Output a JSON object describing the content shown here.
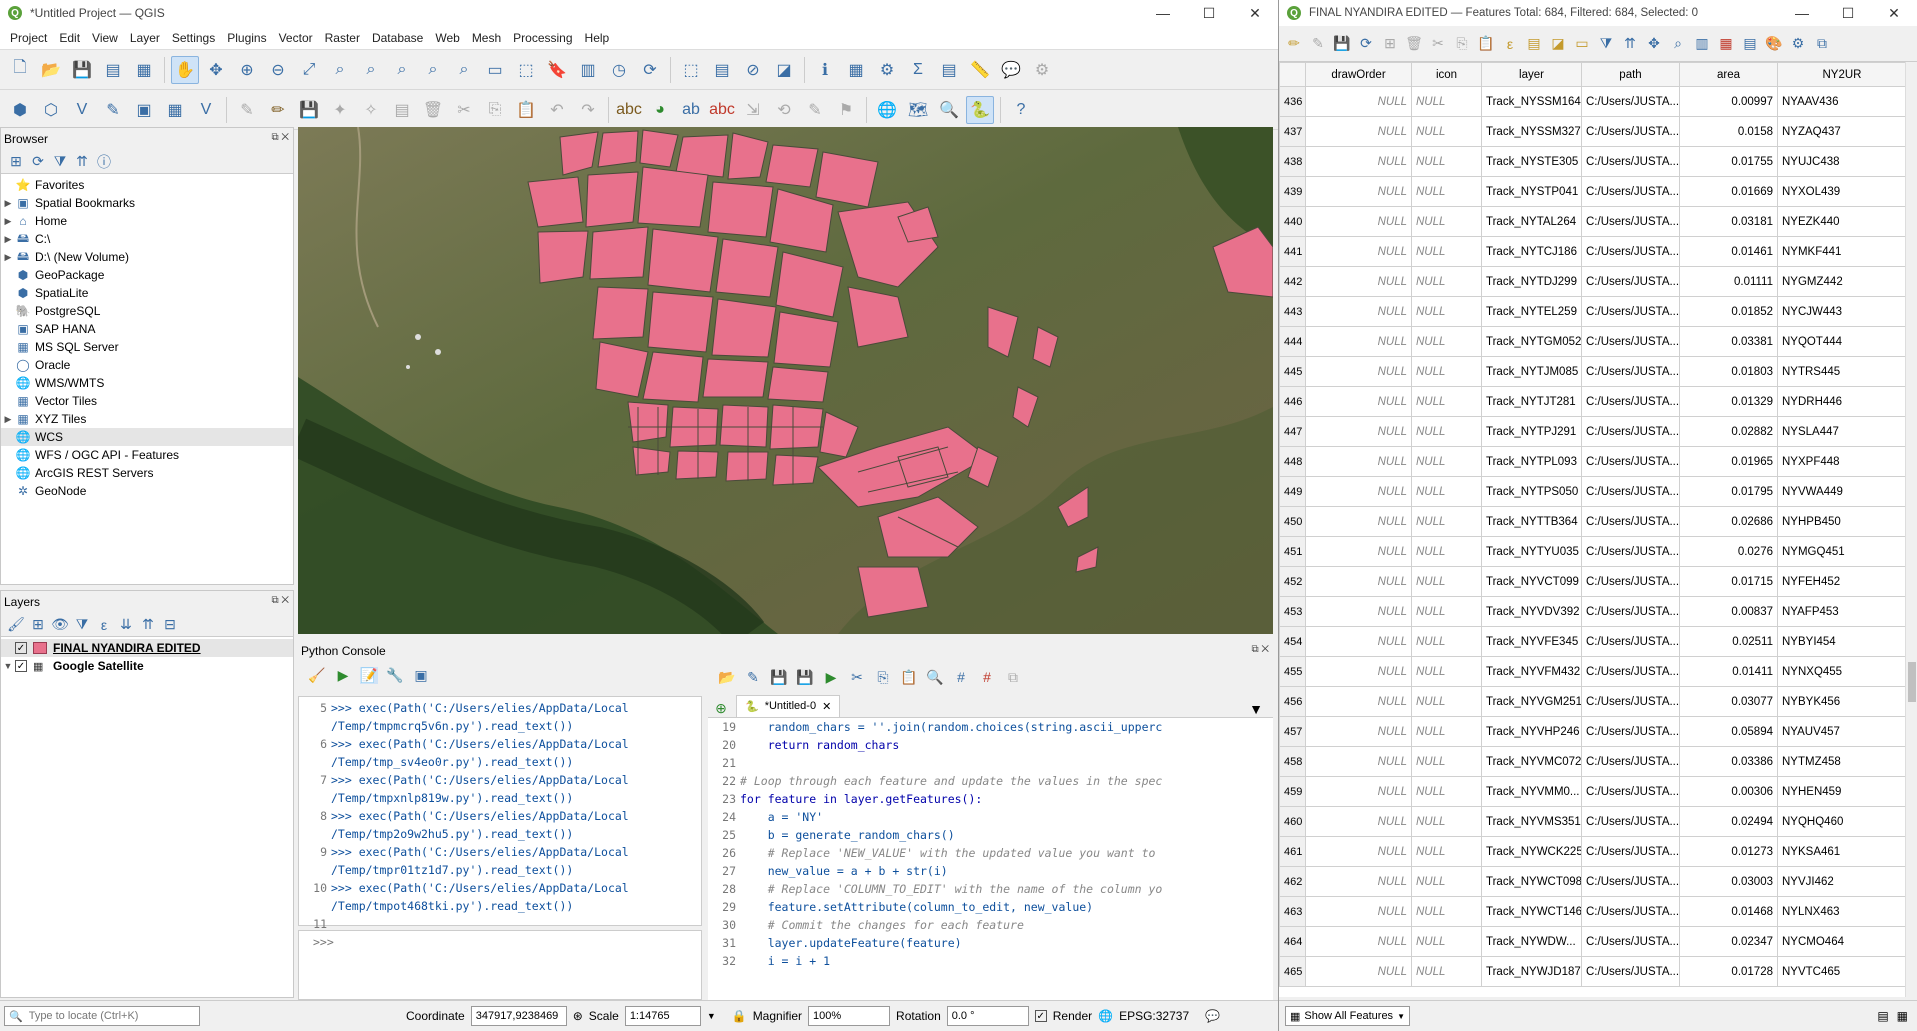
{
  "qgis": {
    "title": "*Untitled Project — QGIS",
    "menu": [
      "Project",
      "Edit",
      "View",
      "Layer",
      "Settings",
      "Plugins",
      "Vector",
      "Raster",
      "Database",
      "Web",
      "Mesh",
      "Processing",
      "Help"
    ],
    "browser": {
      "title": "Browser",
      "items": [
        "Favorites",
        "Spatial Bookmarks",
        "Home",
        "C:\\",
        "D:\\ (New Volume)",
        "GeoPackage",
        "SpatiaLite",
        "PostgreSQL",
        "SAP HANA",
        "MS SQL Server",
        "Oracle",
        "WMS/WMTS",
        "Vector Tiles",
        "XYZ Tiles",
        "WCS",
        "WFS / OGC API - Features",
        "ArcGIS REST Servers",
        "GeoNode"
      ]
    },
    "layers": {
      "title": "Layers",
      "items": [
        "FINAL NYANDIRA EDITED",
        "Google Satellite"
      ]
    },
    "console": {
      "title": "Python Console",
      "history": [
        {
          "n": "5",
          "a": ">>> exec(Path('C:/Users/elies/AppData/Local",
          "b": "/Temp/tmpmcrq5v6n.py').read_text())"
        },
        {
          "n": "6",
          "a": ">>> exec(Path('C:/Users/elies/AppData/Local",
          "b": "/Temp/tmp_sv4eo0r.py').read_text())"
        },
        {
          "n": "7",
          "a": ">>> exec(Path('C:/Users/elies/AppData/Local",
          "b": "/Temp/tmpxnlp819w.py').read_text())"
        },
        {
          "n": "8",
          "a": ">>> exec(Path('C:/Users/elies/AppData/Local",
          "b": "/Temp/tmp2o9w2hu5.py').read_text())"
        },
        {
          "n": "9",
          "a": ">>> exec(Path('C:/Users/elies/AppData/Local",
          "b": "/Temp/tmpr01tz1d7.py').read_text())"
        },
        {
          "n": "10",
          "a": ">>> exec(Path('C:/Users/elies/AppData/Local",
          "b": "/Temp/tmpot468tki.py').read_text())"
        }
      ],
      "last_line": "11",
      "prompt": ">>>",
      "tab": "*Untitled-0",
      "editor": [
        {
          "n": "19",
          "t": "    random_chars = ''.join(random.choices(string.ascii_upperc"
        },
        {
          "n": "20",
          "t": "    return random_chars"
        },
        {
          "n": "21",
          "t": ""
        },
        {
          "n": "22",
          "t": "# Loop through each feature and update the values in the spec"
        },
        {
          "n": "23",
          "t": "for feature in layer.getFeatures():"
        },
        {
          "n": "24",
          "t": "    a = 'NY'"
        },
        {
          "n": "25",
          "t": "    b = generate_random_chars()"
        },
        {
          "n": "26",
          "t": "    # Replace 'NEW_VALUE' with the updated value you want to"
        },
        {
          "n": "27",
          "t": "    new_value = a + b + str(i)"
        },
        {
          "n": "28",
          "t": "    # Replace 'COLUMN_TO_EDIT' with the name of the column yo"
        },
        {
          "n": "29",
          "t": "    feature.setAttribute(column_to_edit, new_value)"
        },
        {
          "n": "30",
          "t": "    # Commit the changes for each feature"
        },
        {
          "n": "31",
          "t": "    layer.updateFeature(feature)"
        },
        {
          "n": "32",
          "t": "    i = i + 1"
        }
      ]
    },
    "status": {
      "locate": "Type to locate (Ctrl+K)",
      "coord_label": "Coordinate",
      "coord": "347917,9238469",
      "scale_label": "Scale",
      "scale": "1:14765",
      "mag_label": "Magnifier",
      "mag": "100%",
      "rot_label": "Rotation",
      "rot": "0.0 °",
      "render": "Render",
      "crs": "EPSG:32737"
    }
  },
  "attr": {
    "title": "FINAL NYANDIRA EDITED — Features Total: 684, Filtered: 684, Selected: 0",
    "columns": [
      "drawOrder",
      "icon",
      "layer",
      "path",
      "area",
      "NY2UR"
    ],
    "rows": [
      [
        "436",
        "NULL",
        "NULL",
        "Track_NYSSM164",
        "C:/Users/JUSTA...",
        "0.00997",
        "NYAAV436"
      ],
      [
        "437",
        "NULL",
        "NULL",
        "Track_NYSSM327",
        "C:/Users/JUSTA...",
        "0.0158",
        "NYZAQ437"
      ],
      [
        "438",
        "NULL",
        "NULL",
        "Track_NYSTE305",
        "C:/Users/JUSTA...",
        "0.01755",
        "NYUJC438"
      ],
      [
        "439",
        "NULL",
        "NULL",
        "Track_NYSTP041",
        "C:/Users/JUSTA...",
        "0.01669",
        "NYXOL439"
      ],
      [
        "440",
        "NULL",
        "NULL",
        "Track_NYTAL264",
        "C:/Users/JUSTA...",
        "0.03181",
        "NYEZK440"
      ],
      [
        "441",
        "NULL",
        "NULL",
        "Track_NYTCJ186",
        "C:/Users/JUSTA...",
        "0.01461",
        "NYMKF441"
      ],
      [
        "442",
        "NULL",
        "NULL",
        "Track_NYTDJ299",
        "C:/Users/JUSTA...",
        "0.01111",
        "NYGMZ442"
      ],
      [
        "443",
        "NULL",
        "NULL",
        "Track_NYTEL259",
        "C:/Users/JUSTA...",
        "0.01852",
        "NYCJW443"
      ],
      [
        "444",
        "NULL",
        "NULL",
        "Track_NYTGM052",
        "C:/Users/JUSTA...",
        "0.03381",
        "NYQOT444"
      ],
      [
        "445",
        "NULL",
        "NULL",
        "Track_NYTJM085",
        "C:/Users/JUSTA...",
        "0.01803",
        "NYTRS445"
      ],
      [
        "446",
        "NULL",
        "NULL",
        "Track_NYTJT281",
        "C:/Users/JUSTA...",
        "0.01329",
        "NYDRH446"
      ],
      [
        "447",
        "NULL",
        "NULL",
        "Track_NYTPJ291",
        "C:/Users/JUSTA...",
        "0.02882",
        "NYSLA447"
      ],
      [
        "448",
        "NULL",
        "NULL",
        "Track_NYTPL093",
        "C:/Users/JUSTA...",
        "0.01965",
        "NYXPF448"
      ],
      [
        "449",
        "NULL",
        "NULL",
        "Track_NYTPS050",
        "C:/Users/JUSTA...",
        "0.01795",
        "NYVWA449"
      ],
      [
        "450",
        "NULL",
        "NULL",
        "Track_NYTTB364",
        "C:/Users/JUSTA...",
        "0.02686",
        "NYHPB450"
      ],
      [
        "451",
        "NULL",
        "NULL",
        "Track_NYTYU035",
        "C:/Users/JUSTA...",
        "0.0276",
        "NYMGQ451"
      ],
      [
        "452",
        "NULL",
        "NULL",
        "Track_NYVCT099",
        "C:/Users/JUSTA...",
        "0.01715",
        "NYFEH452"
      ],
      [
        "453",
        "NULL",
        "NULL",
        "Track_NYVDV392",
        "C:/Users/JUSTA...",
        "0.00837",
        "NYAFP453"
      ],
      [
        "454",
        "NULL",
        "NULL",
        "Track_NYVFE345",
        "C:/Users/JUSTA...",
        "0.02511",
        "NYBYI454"
      ],
      [
        "455",
        "NULL",
        "NULL",
        "Track_NYVFM432",
        "C:/Users/JUSTA...",
        "0.01411",
        "NYNXQ455"
      ],
      [
        "456",
        "NULL",
        "NULL",
        "Track_NYVGM251",
        "C:/Users/JUSTA...",
        "0.03077",
        "NYBYK456"
      ],
      [
        "457",
        "NULL",
        "NULL",
        "Track_NYVHP246",
        "C:/Users/JUSTA...",
        "0.05894",
        "NYAUV457"
      ],
      [
        "458",
        "NULL",
        "NULL",
        "Track_NYVMC072",
        "C:/Users/JUSTA...",
        "0.03386",
        "NYTMZ458"
      ],
      [
        "459",
        "NULL",
        "NULL",
        "Track_NYVMM0...",
        "C:/Users/JUSTA...",
        "0.00306",
        "NYHEN459"
      ],
      [
        "460",
        "NULL",
        "NULL",
        "Track_NYVMS351",
        "C:/Users/JUSTA...",
        "0.02494",
        "NYQHQ460"
      ],
      [
        "461",
        "NULL",
        "NULL",
        "Track_NYWCK225",
        "C:/Users/JUSTA...",
        "0.01273",
        "NYKSA461"
      ],
      [
        "462",
        "NULL",
        "NULL",
        "Track_NYWCT098",
        "C:/Users/JUSTA...",
        "0.03003",
        "NYVJI462"
      ],
      [
        "463",
        "NULL",
        "NULL",
        "Track_NYWCT146",
        "C:/Users/JUSTA...",
        "0.01468",
        "NYLNX463"
      ],
      [
        "464",
        "NULL",
        "NULL",
        "Track_NYWDW...",
        "C:/Users/JUSTA...",
        "0.02347",
        "NYCMO464"
      ],
      [
        "465",
        "NULL",
        "NULL",
        "Track_NYWJD187",
        "C:/Users/JUSTA...",
        "0.01728",
        "NYVTC465"
      ]
    ],
    "show_all": "Show All Features"
  },
  "colors": {
    "polygon": "#e8718c",
    "accent": "#3a6ea5"
  }
}
